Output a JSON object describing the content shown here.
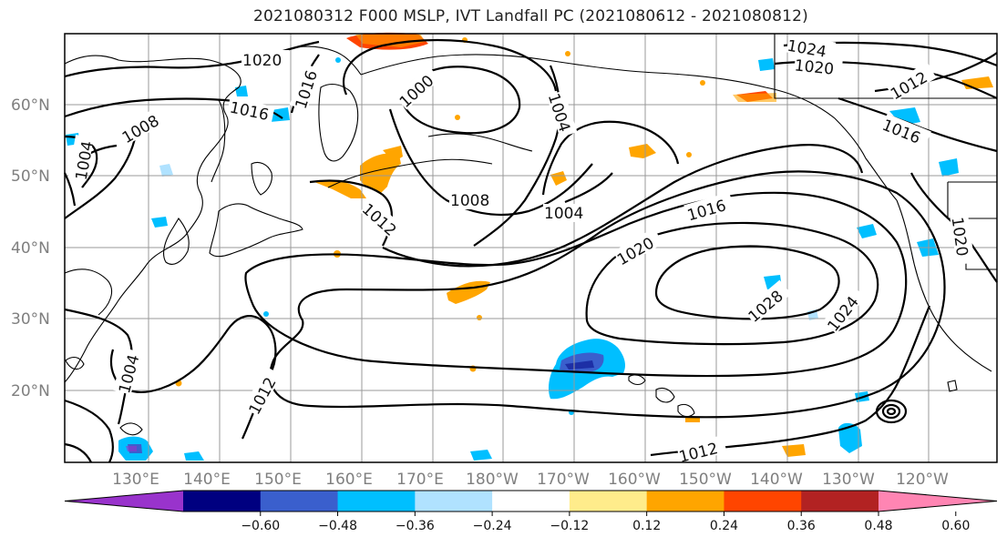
{
  "title": "2021080312 F000 MSLP, IVT Landfall PC (2021080612 - 2021080812)",
  "lat_labels": [
    "60°N",
    "50°N",
    "40°N",
    "30°N",
    "20°N"
  ],
  "lon_labels": [
    "130°E",
    "140°E",
    "150°E",
    "160°E",
    "170°E",
    "180°W",
    "170°W",
    "160°W",
    "150°W",
    "140°W",
    "130°W",
    "120°W"
  ],
  "contour_labels": [
    "1020",
    "1016",
    "1008",
    "1004",
    "1016",
    "1000",
    "1004",
    "1012",
    "1008",
    "1004",
    "1016",
    "1020",
    "1028",
    "1024",
    "1024",
    "1020",
    "1012",
    "1016",
    "1020",
    "1004",
    "1012",
    "1012"
  ],
  "colorbar": {
    "ticks": [
      "−0.60",
      "−0.48",
      "−0.36",
      "−0.24",
      "−0.12",
      "0.12",
      "0.24",
      "0.36",
      "0.48",
      "0.60"
    ],
    "colors": [
      "#9933cc",
      "#000080",
      "#3a5fcd",
      "#00bfff",
      "#b0e2ff",
      "#ffffff",
      "#ffec8b",
      "#ffa500",
      "#ff4500",
      "#b22222",
      "#ff85b3"
    ]
  }
}
